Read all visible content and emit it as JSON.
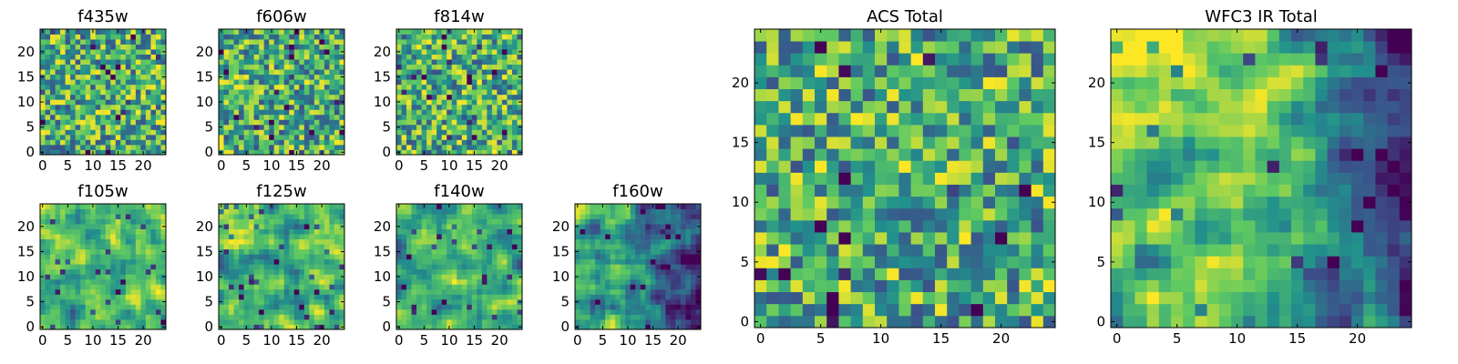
{
  "colormap": "viridis",
  "colormap_stops": [
    "#440154",
    "#3b528b",
    "#21918c",
    "#5ec962",
    "#fde725"
  ],
  "chart_data": [
    {
      "type": "heatmap",
      "title": "f435w",
      "grid_size": 25,
      "xticks": [
        0,
        5,
        10,
        15,
        20
      ],
      "yticks": [
        0,
        5,
        10,
        15,
        20
      ],
      "xlim": [
        -0.5,
        24.5
      ],
      "ylim": [
        -0.5,
        24.5
      ],
      "pattern": "pixel noise"
    },
    {
      "type": "heatmap",
      "title": "f606w",
      "grid_size": 25,
      "xticks": [
        0,
        5,
        10,
        15,
        20
      ],
      "yticks": [
        0,
        5,
        10,
        15,
        20
      ],
      "xlim": [
        -0.5,
        24.5
      ],
      "ylim": [
        -0.5,
        24.5
      ],
      "pattern": "pixel noise"
    },
    {
      "type": "heatmap",
      "title": "f814w",
      "grid_size": 25,
      "xticks": [
        0,
        5,
        10,
        15,
        20
      ],
      "yticks": [
        0,
        5,
        10,
        15,
        20
      ],
      "xlim": [
        -0.5,
        24.5
      ],
      "ylim": [
        -0.5,
        24.5
      ],
      "pattern": "pixel noise"
    },
    {
      "type": "heatmap",
      "title": "f105w",
      "grid_size": 25,
      "xticks": [
        0,
        5,
        10,
        15,
        20
      ],
      "yticks": [
        0,
        5,
        10,
        15,
        20
      ],
      "xlim": [
        -0.5,
        24.5
      ],
      "ylim": [
        -0.5,
        24.5
      ],
      "pattern": "smoothed noise"
    },
    {
      "type": "heatmap",
      "title": "f125w",
      "grid_size": 25,
      "xticks": [
        0,
        5,
        10,
        15,
        20
      ],
      "yticks": [
        0,
        5,
        10,
        15,
        20
      ],
      "xlim": [
        -0.5,
        24.5
      ],
      "ylim": [
        -0.5,
        24.5
      ],
      "pattern": "smoothed noise"
    },
    {
      "type": "heatmap",
      "title": "f140w",
      "grid_size": 25,
      "xticks": [
        0,
        5,
        10,
        15,
        20
      ],
      "yticks": [
        0,
        5,
        10,
        15,
        20
      ],
      "xlim": [
        -0.5,
        24.5
      ],
      "ylim": [
        -0.5,
        24.5
      ],
      "pattern": "smoothed noise"
    },
    {
      "type": "heatmap",
      "title": "f160w",
      "grid_size": 25,
      "xticks": [
        0,
        5,
        10,
        15,
        20
      ],
      "yticks": [
        0,
        5,
        10,
        15,
        20
      ],
      "xlim": [
        -0.5,
        24.5
      ],
      "ylim": [
        -0.5,
        24.5
      ],
      "pattern": "smoothed noise, darker right edge"
    },
    {
      "type": "heatmap",
      "title": "ACS Total",
      "grid_size": 25,
      "xticks": [
        0,
        5,
        10,
        15,
        20
      ],
      "yticks": [
        0,
        5,
        10,
        15,
        20
      ],
      "xlim": [
        -0.5,
        24.5
      ],
      "ylim": [
        -0.5,
        24.5
      ],
      "pattern": "pixel noise"
    },
    {
      "type": "heatmap",
      "title": "WFC3 IR Total",
      "grid_size": 25,
      "xticks": [
        0,
        5,
        10,
        15,
        20
      ],
      "yticks": [
        0,
        5,
        10,
        15,
        20
      ],
      "xlim": [
        -0.5,
        24.5
      ],
      "ylim": [
        -0.5,
        24.5
      ],
      "pattern": "smoothed, bright upper-left, dark right edge"
    }
  ]
}
